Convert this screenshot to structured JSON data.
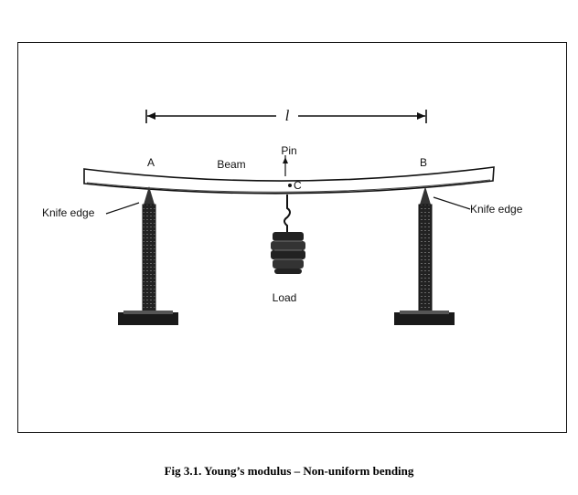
{
  "figure": {
    "labels": {
      "length": "l",
      "point_a": "A",
      "point_b": "B",
      "beam": "Beam",
      "pin": "Pin",
      "point_c": "C",
      "knife_edge_left": "Knife edge",
      "knife_edge_right": "Knife edge",
      "load": "Load"
    },
    "caption": "Fig 3.1. Young’s modulus – Non-uniform bending"
  }
}
